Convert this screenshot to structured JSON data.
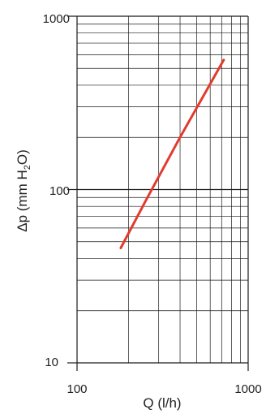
{
  "chart_data": {
    "type": "line",
    "title": "",
    "xlabel": "Q (l/h)",
    "ylabel": {
      "main": "Δp (mm H",
      "sub": "2",
      "tail": "O)"
    },
    "x_scale": "log",
    "y_scale": "log",
    "xlim": [
      100,
      1000
    ],
    "ylim": [
      10,
      1000
    ],
    "x_ticks": [
      "100",
      "1000"
    ],
    "y_ticks": [
      "10",
      "100",
      "1000"
    ],
    "grid": true,
    "series": [
      {
        "color": "#e23b2e",
        "x": [
          180,
          250,
          400,
          720
        ],
        "y": [
          46,
          85,
          200,
          560
        ]
      }
    ]
  }
}
